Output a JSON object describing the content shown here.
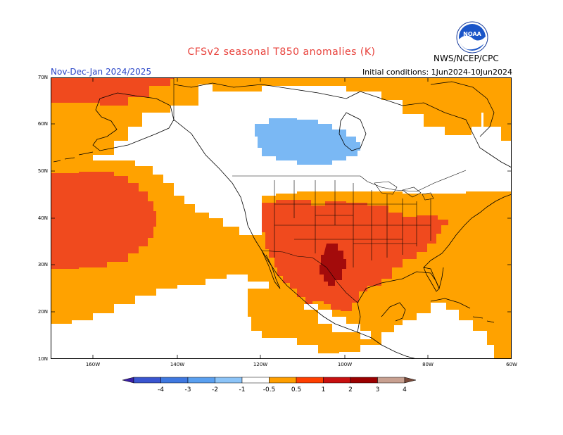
{
  "header": {
    "title": "CFSv2 seasonal T850 anomalies (K)",
    "season": "Nov-Dec-Jan 2024/2025",
    "initial_conditions": "Initial conditions: 1Jun2024-10Jun2024",
    "agency": "NWS/NCEP/CPC",
    "logo_text": "NOAA"
  },
  "axes": {
    "lat_labels": [
      "70N",
      "60N",
      "50N",
      "40N",
      "30N",
      "20N",
      "10N"
    ],
    "lon_labels": [
      "160W",
      "140W",
      "120W",
      "100W",
      "80W",
      "60W"
    ]
  },
  "colorbar": {
    "labels": [
      "-4",
      "-3",
      "-2",
      "-1",
      "-0.5",
      "0.5",
      "1",
      "2",
      "3",
      "4"
    ],
    "colors": [
      "#3a1fa6",
      "#3a55d0",
      "#3f78e0",
      "#5aa0f0",
      "#8cc4f8",
      "#ffffff",
      "#ff9f00",
      "#ff3f00",
      "#c81010",
      "#9b0000",
      "#c8a090",
      "#7a4a3a"
    ]
  },
  "anomaly_colors": {
    "orange": "#ffa200",
    "red_orange": "#f04a1e",
    "dark_red": "#a30b0b",
    "light_blue": "#7ab8f4"
  }
}
